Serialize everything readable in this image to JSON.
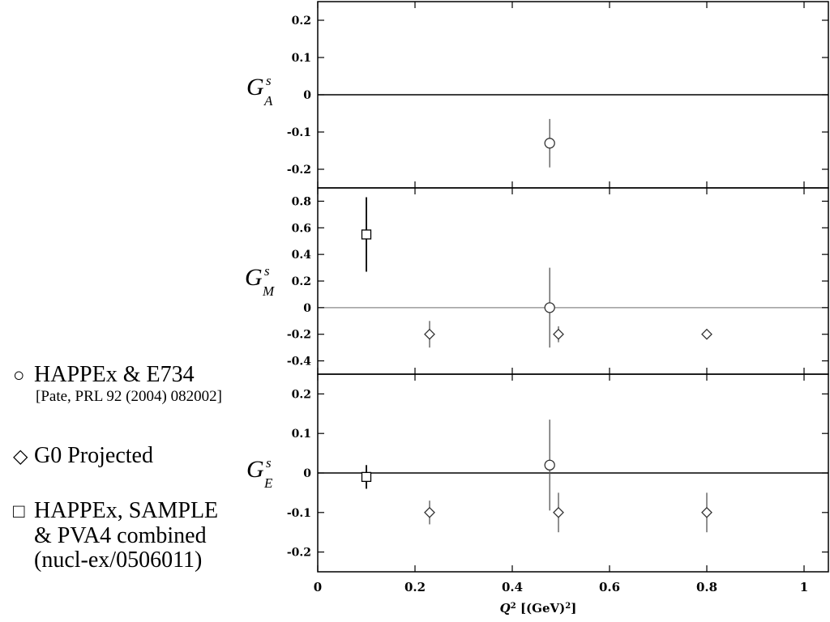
{
  "chart_data": {
    "type": "scatter",
    "x_axis": {
      "label_base": "Q",
      "label_sup": "2",
      "label_unit": " [(GeV)",
      "label_unit_sup": "2",
      "label_end": "]",
      "range": [
        0,
        1.05
      ],
      "ticks": [
        "0",
        "0.2",
        "0.4",
        "0.6",
        "0.8",
        "1"
      ],
      "tick_values": [
        0,
        0.2,
        0.4,
        0.6,
        0.8,
        1.0
      ]
    },
    "panels": [
      {
        "ylabel_main": "G",
        "ylabel_sup": "s",
        "ylabel_sub": "A",
        "ylim": [
          -0.25,
          0.25
        ],
        "yticks": [
          "0.2",
          "0.1",
          "0",
          "-0.1",
          "-0.2"
        ],
        "ytick_values": [
          0.2,
          0.1,
          0,
          -0.1,
          -0.2
        ],
        "zero_line": "dark",
        "points": [
          {
            "marker": "circle",
            "x": 0.477,
            "y": -0.13,
            "err": 0.065
          }
        ]
      },
      {
        "ylabel_main": "G",
        "ylabel_sup": "s",
        "ylabel_sub": "M",
        "ylim": [
          -0.5,
          0.9
        ],
        "yticks": [
          "0.8",
          "0.6",
          "0.4",
          "0.2",
          "0",
          "-0.2",
          "-0.4"
        ],
        "ytick_values": [
          0.8,
          0.6,
          0.4,
          0.2,
          0,
          -0.2,
          -0.4
        ],
        "zero_line": "light",
        "points": [
          {
            "marker": "square",
            "x": 0.1,
            "y": 0.55,
            "err": 0.28
          },
          {
            "marker": "circle",
            "x": 0.477,
            "y": 0.0,
            "err": 0.3
          },
          {
            "marker": "diamond",
            "x": 0.23,
            "y": -0.2,
            "err": 0.1
          },
          {
            "marker": "diamond",
            "x": 0.495,
            "y": -0.2,
            "err": 0.06
          },
          {
            "marker": "diamond",
            "x": 0.8,
            "y": -0.2,
            "err": 0.03
          }
        ]
      },
      {
        "ylabel_main": "G",
        "ylabel_sup": "s",
        "ylabel_sub": "E",
        "ylim": [
          -0.25,
          0.25
        ],
        "yticks": [
          "0.2",
          "0.1",
          "0",
          "-0.1",
          "-0.2"
        ],
        "ytick_values": [
          0.2,
          0.1,
          0,
          -0.1,
          -0.2
        ],
        "zero_line": "dark",
        "points": [
          {
            "marker": "square",
            "x": 0.1,
            "y": -0.01,
            "err": 0.03
          },
          {
            "marker": "circle",
            "x": 0.477,
            "y": 0.02,
            "err": 0.115
          },
          {
            "marker": "diamond",
            "x": 0.23,
            "y": -0.1,
            "err": 0.03
          },
          {
            "marker": "diamond",
            "x": 0.495,
            "y": -0.1,
            "err": 0.05
          },
          {
            "marker": "diamond",
            "x": 0.8,
            "y": -0.1,
            "err": 0.05
          }
        ]
      }
    ]
  },
  "legend": {
    "circle_symbol": "○",
    "circle_label": "HAPPEx & E734",
    "circle_ref": "[Pate, PRL 92 (2004) 082002]",
    "diamond_symbol": "◇",
    "diamond_label": "G0 Projected",
    "square_symbol": "□",
    "square_label_1": "HAPPEx, SAMPLE",
    "square_label_2": "& PVA4  combined",
    "square_label_3": "(nucl-ex/0506011)"
  }
}
